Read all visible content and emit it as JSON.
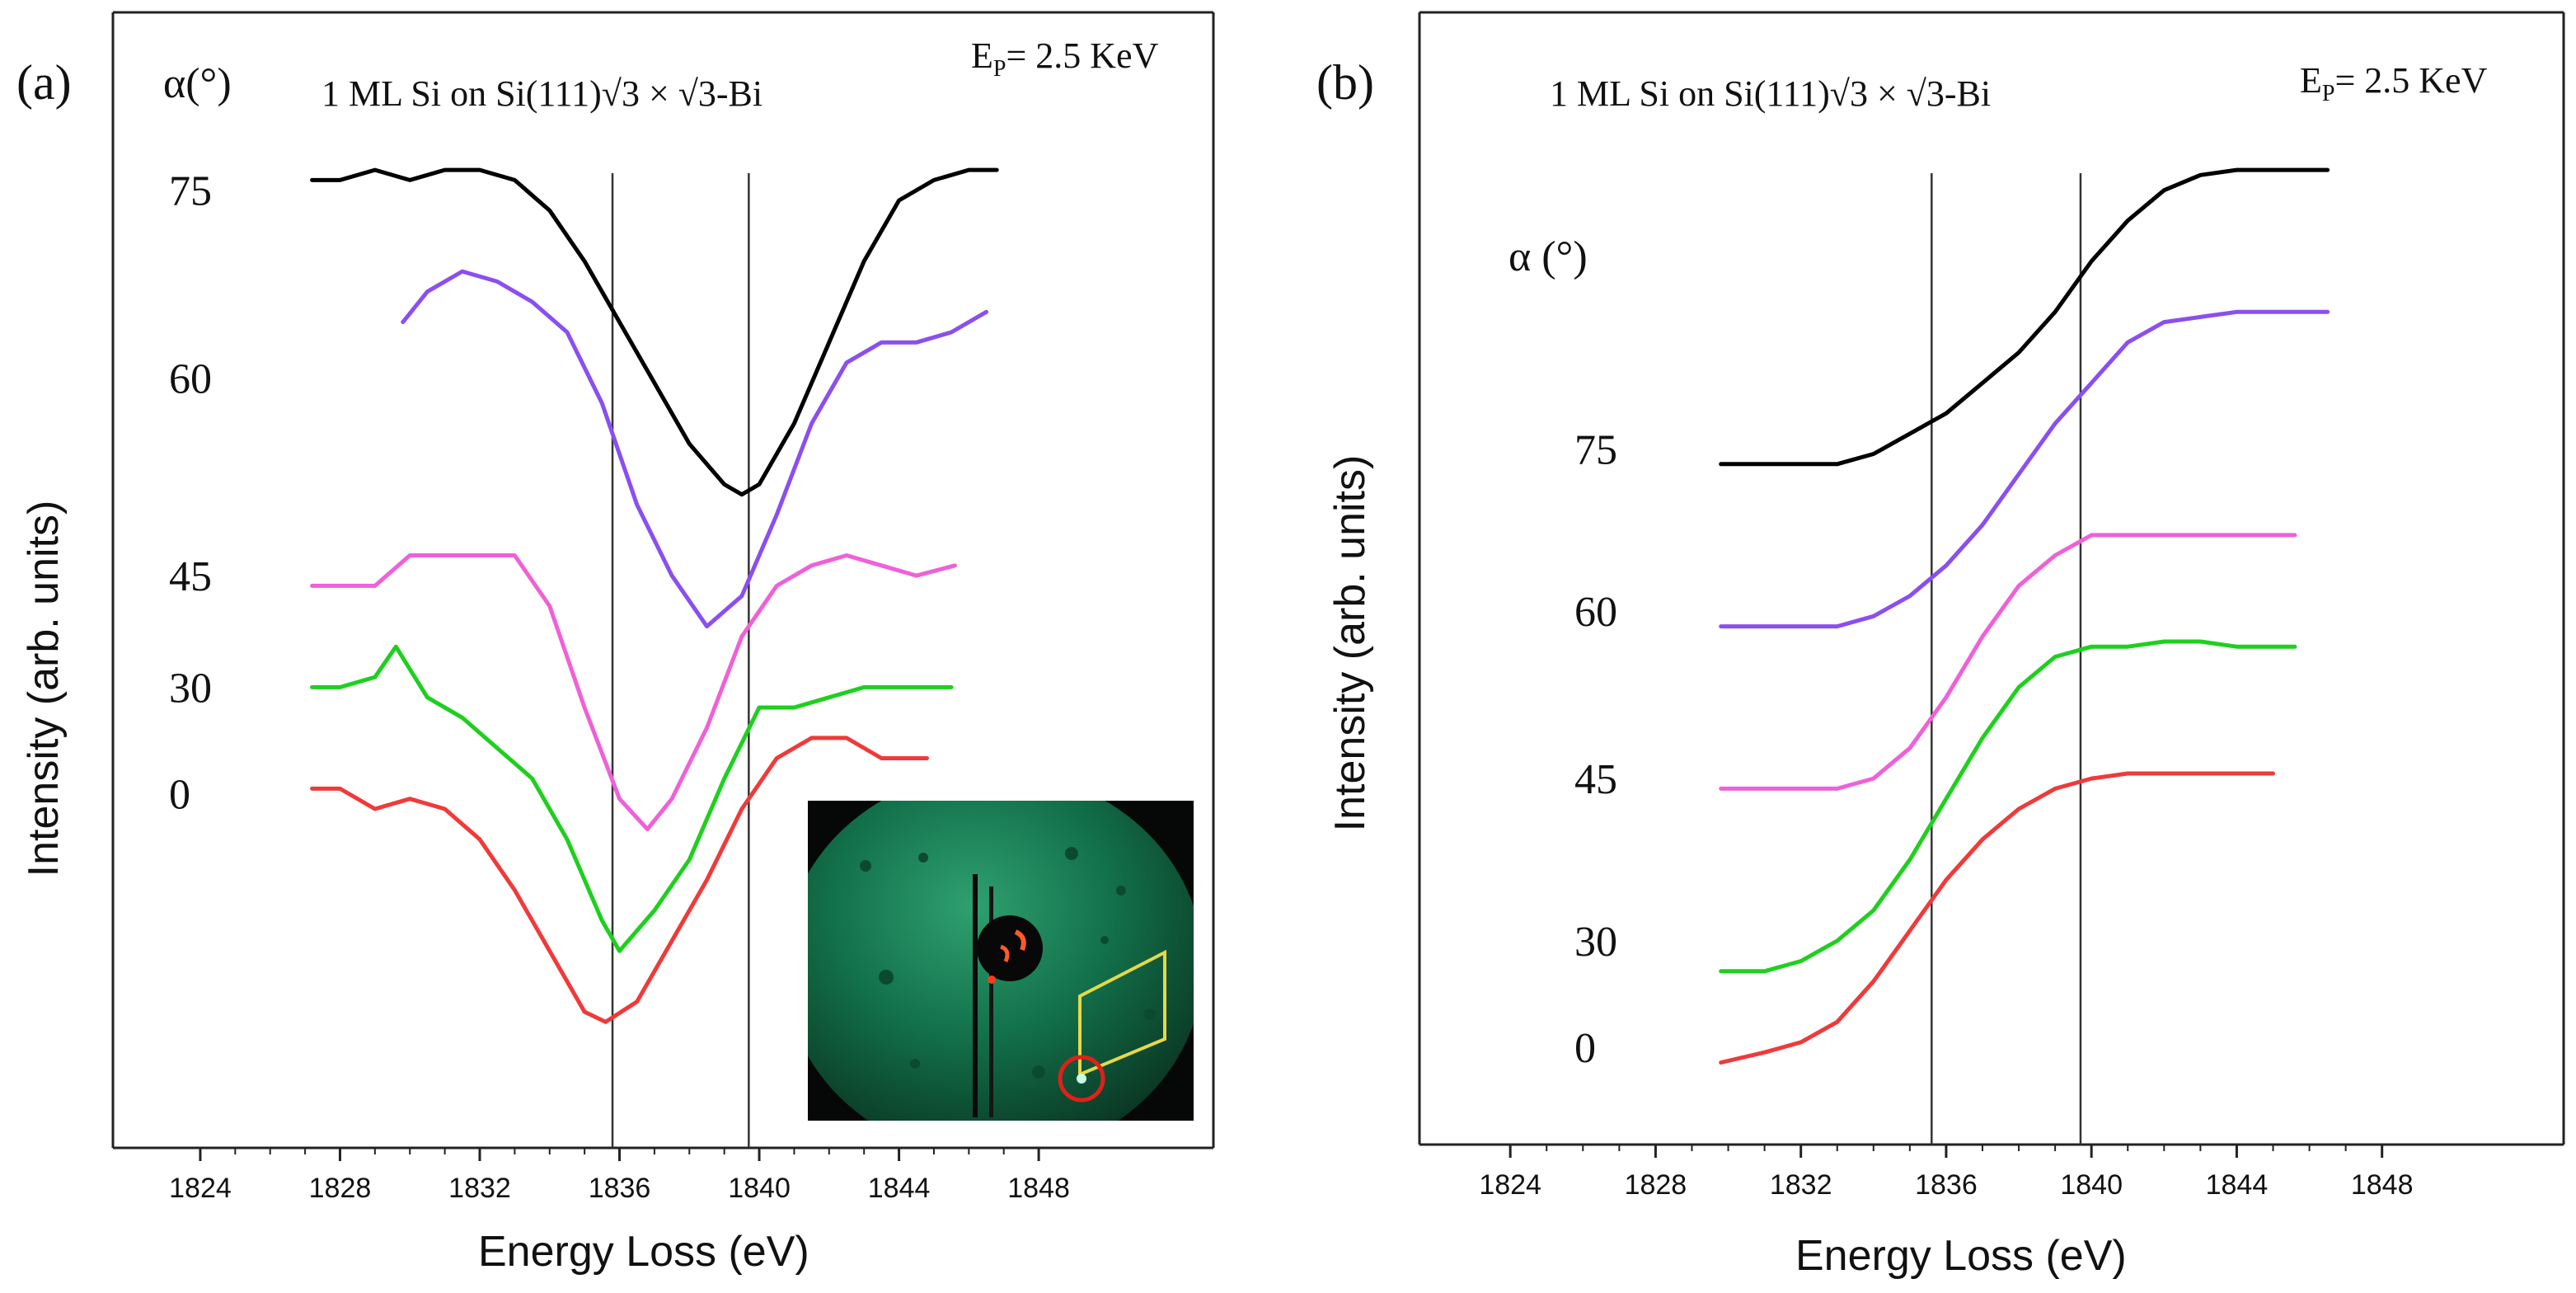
{
  "chart_data": [
    {
      "type": "line",
      "panel_label": "(a)",
      "title": "1 ML Si on Si(111)√3 × √3-Bi",
      "energy_label_main": "E",
      "energy_label_sub": "P",
      "energy_label_value": "= 2.5 KeV",
      "alpha_header": "α(°)",
      "xlabel": "Energy Loss (eV)",
      "ylabel": "Intensity (arb. units)",
      "xlim": [
        1821.5,
        1853
      ],
      "ylim": [
        0,
        100
      ],
      "xticks": [
        1824,
        1828,
        1832,
        1836,
        1840,
        1844,
        1848
      ],
      "xtick_labels": [
        "1824",
        "1828",
        "1832",
        "1836",
        "1840",
        "1844",
        "1848"
      ],
      "vlines": [
        1835.8,
        1839.7
      ],
      "inset": "LEED diffraction pattern (green screen) with yellow unit cell outline and red circled spot",
      "curve_labels": [
        {
          "text": "75",
          "y": 91
        },
        {
          "text": "60",
          "y": 72.5
        },
        {
          "text": "45",
          "y": 53
        },
        {
          "text": "30",
          "y": 42
        },
        {
          "text": "0",
          "y": 31.5
        }
      ],
      "series": [
        {
          "name": "75",
          "color": "#000000",
          "x": [
            1827.2,
            1828,
            1829,
            1830,
            1831,
            1832,
            1833,
            1834,
            1835,
            1836,
            1837,
            1838,
            1839,
            1839.5,
            1840,
            1841,
            1842,
            1843,
            1844,
            1845,
            1846,
            1846.8
          ],
          "y": [
            92,
            92,
            93,
            92,
            93,
            93,
            92,
            89,
            84,
            78,
            72,
            66,
            62,
            61,
            62,
            68,
            76,
            84,
            90,
            92,
            93,
            93
          ]
        },
        {
          "name": "60",
          "color": "#8a4ff0",
          "x": [
            1829.8,
            1830.5,
            1831.5,
            1832.5,
            1833.5,
            1834.5,
            1835.5,
            1836.5,
            1837.5,
            1838.5,
            1839.5,
            1840.5,
            1841.5,
            1842.5,
            1843.5,
            1844.5,
            1845.5,
            1846.5
          ],
          "y": [
            78,
            81,
            83,
            82,
            80,
            77,
            70,
            60,
            53,
            48,
            51,
            59,
            68,
            74,
            76,
            76,
            77,
            79
          ]
        },
        {
          "name": "45",
          "color": "#f060d8",
          "x": [
            1827.2,
            1828,
            1829,
            1830,
            1831,
            1832,
            1833,
            1834,
            1835,
            1836,
            1836.8,
            1837.5,
            1838.5,
            1839.5,
            1840.5,
            1841.5,
            1842.5,
            1843.5,
            1844.5,
            1845.6
          ],
          "y": [
            52,
            52,
            52,
            55,
            55,
            55,
            55,
            50,
            40,
            31,
            28,
            31,
            38,
            47,
            52,
            54,
            55,
            54,
            53,
            54
          ]
        },
        {
          "name": "30",
          "color": "#1ed01e",
          "x": [
            1827.2,
            1828,
            1829,
            1829.6,
            1830.5,
            1831.5,
            1832.5,
            1833.5,
            1834.5,
            1835.5,
            1836,
            1837,
            1838,
            1839,
            1840,
            1841,
            1842,
            1843,
            1844,
            1845.5
          ],
          "y": [
            42,
            42,
            43,
            46,
            41,
            39,
            36,
            33,
            27,
            19,
            16,
            20,
            25,
            33,
            40,
            40,
            41,
            42,
            42,
            42
          ]
        },
        {
          "name": "0",
          "color": "#f03a3a",
          "x": [
            1827.2,
            1828,
            1829,
            1830,
            1831,
            1832,
            1833,
            1834,
            1835,
            1835.6,
            1836.5,
            1837.5,
            1838.5,
            1839.5,
            1840.5,
            1841.5,
            1842.5,
            1843.5,
            1844.8
          ],
          "y": [
            32,
            32,
            30,
            31,
            30,
            27,
            22,
            16,
            10,
            9,
            11,
            17,
            23,
            30,
            35,
            37,
            37,
            35,
            35
          ]
        }
      ]
    },
    {
      "type": "line",
      "panel_label": "(b)",
      "title": "1 ML Si on Si(111)√3 × √3-Bi",
      "energy_label_main": "E",
      "energy_label_sub": "P",
      "energy_label_value": "= 2.5 KeV",
      "alpha_header": "α (°)",
      "xlabel": "Energy Loss (eV)",
      "ylabel": "Intensity (arb. units)",
      "xlim": [
        1821.5,
        1853
      ],
      "ylim": [
        0,
        100
      ],
      "xticks": [
        1824,
        1828,
        1832,
        1836,
        1840,
        1844,
        1848
      ],
      "xtick_labels": [
        "1824",
        "1828",
        "1832",
        "1836",
        "1840",
        "1844",
        "1848"
      ],
      "vlines": [
        1835.6,
        1839.7
      ],
      "curve_labels": [
        {
          "text": "75",
          "y": 65.5
        },
        {
          "text": "60",
          "y": 49.5
        },
        {
          "text": "45",
          "y": 33
        },
        {
          "text": "30",
          "y": 17
        },
        {
          "text": "0",
          "y": 6.5
        }
      ],
      "series": [
        {
          "name": "75",
          "color": "#000000",
          "x": [
            1829.8,
            1831,
            1832,
            1833,
            1834,
            1835,
            1836,
            1837,
            1838,
            1839,
            1840,
            1841,
            1842,
            1843,
            1844,
            1845,
            1846.5
          ],
          "y": [
            64,
            64,
            64,
            64,
            65,
            67,
            69,
            72,
            75,
            79,
            84,
            88,
            91,
            92.5,
            93,
            93,
            93
          ]
        },
        {
          "name": "60",
          "color": "#8a4ff0",
          "x": [
            1829.8,
            1831,
            1832,
            1833,
            1834,
            1835,
            1836,
            1837,
            1838,
            1839,
            1840,
            1841,
            1842,
            1843,
            1844,
            1845,
            1846.5
          ],
          "y": [
            48,
            48,
            48,
            48,
            49,
            51,
            54,
            58,
            63,
            68,
            72,
            76,
            78,
            78.5,
            79,
            79,
            79
          ]
        },
        {
          "name": "45",
          "color": "#f060d8",
          "x": [
            1829.8,
            1831,
            1832,
            1833,
            1834,
            1835,
            1836,
            1837,
            1838,
            1839,
            1840,
            1841,
            1842,
            1843,
            1844,
            1845.6
          ],
          "y": [
            32,
            32,
            32,
            32,
            33,
            36,
            41,
            47,
            52,
            55,
            57,
            57,
            57,
            57,
            57,
            57
          ]
        },
        {
          "name": "30",
          "color": "#1ed01e",
          "x": [
            1829.8,
            1831,
            1832,
            1833,
            1834,
            1835,
            1836,
            1837,
            1838,
            1839,
            1840,
            1841,
            1842,
            1843,
            1844,
            1845.6
          ],
          "y": [
            14,
            14,
            15,
            17,
            20,
            25,
            31,
            37,
            42,
            45,
            46,
            46,
            46.5,
            46.5,
            46,
            46
          ]
        },
        {
          "name": "0",
          "color": "#f03a3a",
          "x": [
            1829.8,
            1831,
            1832,
            1833,
            1834,
            1835,
            1836,
            1837,
            1838,
            1839,
            1840,
            1841,
            1842,
            1843,
            1844,
            1845
          ],
          "y": [
            5,
            6,
            7,
            9,
            13,
            18,
            23,
            27,
            30,
            32,
            33,
            33.5,
            33.5,
            33.5,
            33.5,
            33.5
          ]
        }
      ]
    }
  ]
}
